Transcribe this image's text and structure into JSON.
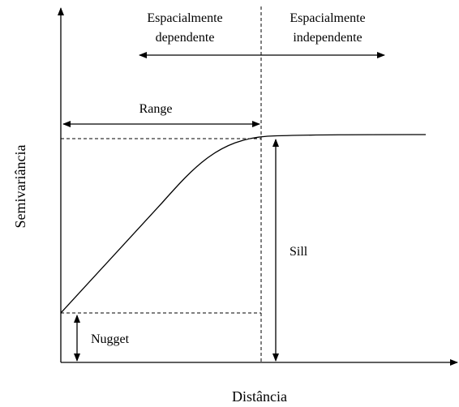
{
  "labels": {
    "dependent": [
      "Espacialmente",
      "dependente"
    ],
    "independent": [
      "Espacialmente",
      "independente"
    ],
    "range": "Range",
    "sill": "Sill",
    "nugget": "Nugget",
    "y_axis": "Semivariância",
    "x_axis": "Distância"
  }
}
